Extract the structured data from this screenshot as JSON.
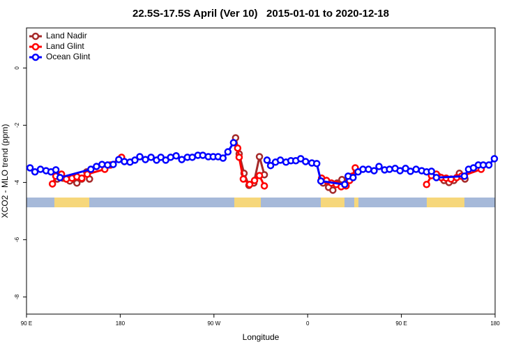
{
  "chart_data": {
    "type": "line",
    "title": "22.5S-17.5S April (Ver 10)   2015-01-01 to 2020-12-18",
    "x_label": "Longitude",
    "y_label": "XCO2 - MLO trend (ppm)",
    "xlim": [
      90,
      540
    ],
    "ylim": [
      -8.6,
      1.4
    ],
    "xticks": [
      {
        "value": 90,
        "label": "90 E"
      },
      180,
      {
        "value": 270,
        "label": "90 W"
      },
      {
        "value": 360,
        "label": "0"
      },
      {
        "value": 450,
        "label": "90 E"
      },
      {
        "value": 540,
        "label": "180"
      }
    ],
    "yticks": [
      0,
      -2,
      -4,
      -6,
      -8
    ],
    "legend": "topleft",
    "series": [
      {
        "name": "Land Nadir",
        "color": "#a52a2a",
        "x": [
          119.6,
          124.9,
          131.6,
          138.4,
          143.1,
          147.8,
          150.5,
          null,
          290.8,
          294.2,
          298.9,
          303.6,
          308.3,
          313.7,
          318.4,
          null,
          374.8,
          380.1,
          384.2,
          388.2,
          392.9,
          400.3,
          null,
          480.9,
          486.2,
          490.9,
          495.7,
          500.4,
          505.7,
          511.1
        ],
        "values": [
          -3.88,
          -3.85,
          -3.95,
          -4.02,
          -3.88,
          -3.63,
          -3.88,
          null,
          -2.44,
          -3.0,
          -3.68,
          -4.1,
          -4.02,
          -3.1,
          -3.73,
          null,
          -4.02,
          -4.17,
          -4.27,
          -4.02,
          -3.9,
          -3.85,
          null,
          -3.73,
          -3.8,
          -3.93,
          -4.0,
          -3.93,
          -3.68,
          -3.88
        ]
      },
      {
        "name": "Land Glint",
        "color": "#ff0000",
        "x": [
          114.9,
          118.2,
          123.6,
          128.3,
          133.7,
          138.4,
          143.1,
          148.4,
          165.2,
          170.6,
          181.3,
          null,
          292.8,
          294.2,
          298.2,
          304.3,
          309.0,
          313.7,
          318.4,
          null,
          373.4,
          378.1,
          382.8,
          387.5,
          392.2,
          396.9,
          400.3,
          402.9,
          405.7,
          null,
          474.2,
          478.9,
          483.6,
          488.3,
          493.0,
          497.7,
          503.1,
          507.8,
          526.6
        ],
        "values": [
          -4.05,
          -3.78,
          -3.71,
          -3.88,
          -3.85,
          -3.8,
          -3.85,
          -3.71,
          -3.54,
          -3.39,
          -3.12,
          null,
          -2.8,
          -3.12,
          -3.88,
          -4.07,
          -3.93,
          -3.76,
          -4.12,
          null,
          -3.85,
          -3.93,
          -4.02,
          -4.07,
          -4.15,
          -4.12,
          -3.93,
          -3.78,
          -3.49,
          null,
          -4.07,
          -3.76,
          -3.71,
          -3.83,
          -3.85,
          -3.88,
          -3.83,
          -3.78,
          -3.54
        ]
      },
      {
        "name": "Ocean Glint",
        "color": "#0000ff",
        "x": [
          93.4,
          98.1,
          103.4,
          108.8,
          113.5,
          118.2,
          122.2,
          151.8,
          157.2,
          162.5,
          167.9,
          173.3,
          178.6,
          184.0,
          189.4,
          194.1,
          198.8,
          204.2,
          209.6,
          214.9,
          219.0,
          223.7,
          228.4,
          233.7,
          239.1,
          244.5,
          249.2,
          254.6,
          259.3,
          264.6,
          269.3,
          274.0,
          278.7,
          283.4,
          288.8,
          null,
          321.0,
          324.4,
          329.1,
          333.8,
          339.2,
          343.9,
          348.6,
          353.3,
          358.0,
          364.0,
          368.7,
          372.7,
          395.6,
          398.9,
          403.6,
          408.4,
          413.1,
          418.4,
          423.8,
          428.5,
          433.9,
          438.6,
          444.0,
          448.7,
          454.0,
          458.7,
          464.1,
          469.5,
          474.2,
          478.9,
          483.6,
          510.5,
          514.5,
          519.2,
          523.9,
          528.6,
          534.0,
          539.3
        ],
        "values": [
          -3.49,
          -3.63,
          -3.54,
          -3.59,
          -3.63,
          -3.56,
          -3.83,
          -3.54,
          -3.44,
          -3.37,
          -3.39,
          -3.37,
          -3.2,
          -3.27,
          -3.29,
          -3.22,
          -3.1,
          -3.2,
          -3.12,
          -3.22,
          -3.12,
          -3.22,
          -3.12,
          -3.07,
          -3.2,
          -3.12,
          -3.12,
          -3.05,
          -3.05,
          -3.1,
          -3.1,
          -3.1,
          -3.15,
          -2.93,
          -2.61,
          null,
          -3.22,
          -3.41,
          -3.29,
          -3.22,
          -3.29,
          -3.24,
          -3.24,
          -3.17,
          -3.27,
          -3.32,
          -3.34,
          -3.95,
          -4.07,
          -3.78,
          -3.83,
          -3.63,
          -3.54,
          -3.54,
          -3.59,
          -3.44,
          -3.56,
          -3.54,
          -3.51,
          -3.59,
          -3.51,
          -3.61,
          -3.54,
          -3.59,
          -3.63,
          -3.61,
          -3.83,
          -3.78,
          -3.54,
          -3.49,
          -3.39,
          -3.39,
          -3.39,
          -3.17
        ]
      }
    ]
  }
}
